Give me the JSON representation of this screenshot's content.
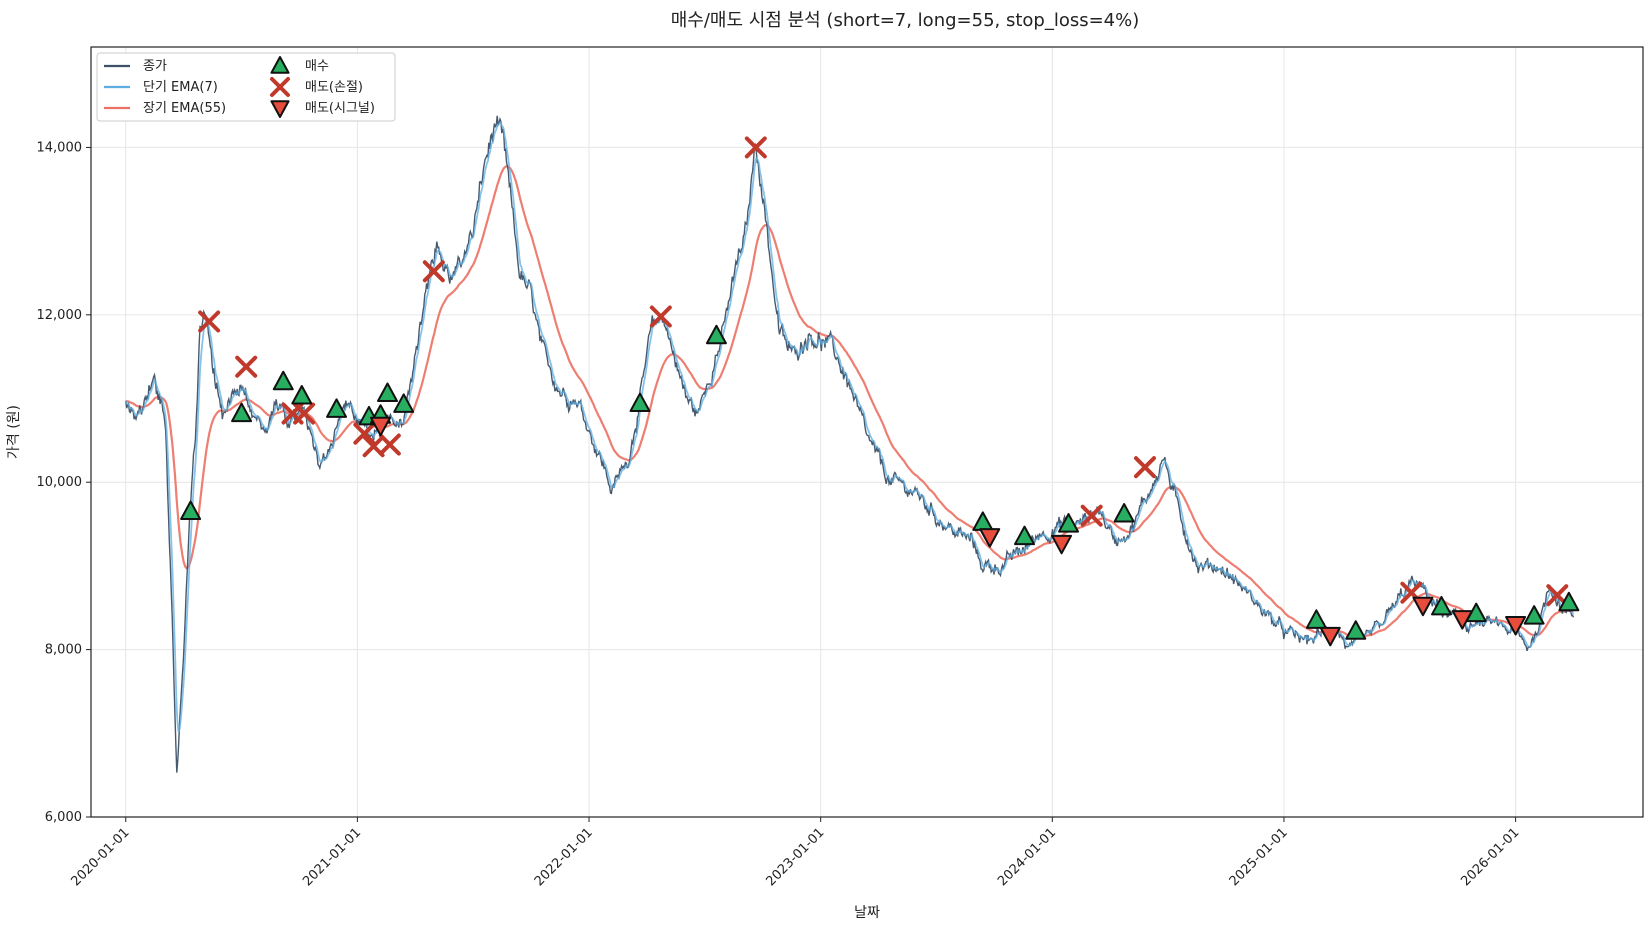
{
  "chart_data": {
    "type": "line",
    "title": "매수/매도 시점 분석 (short=7, long=55, stop_loss=4%)",
    "xlabel": "날짜",
    "ylabel": "가격 (원)",
    "ylim": [
      6000,
      15200
    ],
    "xlim": [
      2019.85,
      2026.55
    ],
    "yticks": [
      6000,
      8000,
      10000,
      12000,
      14000
    ],
    "ytick_labels": [
      "6,000",
      "8,000",
      "10,000",
      "12,000",
      "14,000"
    ],
    "xticks": [
      2020,
      2021,
      2022,
      2023,
      2024,
      2025,
      2026
    ],
    "xtick_labels": [
      "2020-01-01",
      "2021-01-01",
      "2022-01-01",
      "2023-01-01",
      "2024-01-01",
      "2025-01-01",
      "2026-01-01"
    ],
    "grid": true,
    "legend_position": "top-left",
    "colors": {
      "close": "#3d5166",
      "short": "#5dade2",
      "long": "#ec7063",
      "buy": "#27ae60",
      "stop": "#c0392b",
      "signal": "#e74c3c"
    },
    "legend": [
      "종가",
      "단기 EMA(7)",
      "장기 EMA(55)",
      "매수",
      "매도(손절)",
      "매도(시그널)"
    ],
    "price_anchors": {
      "x": [
        2020.0,
        2020.05,
        2020.12,
        2020.17,
        2020.2,
        2020.22,
        2020.25,
        2020.28,
        2020.3,
        2020.32,
        2020.35,
        2020.37,
        2020.42,
        2020.5,
        2020.55,
        2020.6,
        2020.65,
        2020.7,
        2020.77,
        2020.83,
        2020.9,
        2020.95,
        2021.0,
        2021.05,
        2021.12,
        2021.2,
        2021.3,
        2021.35,
        2021.4,
        2021.45,
        2021.5,
        2021.55,
        2021.6,
        2021.63,
        2021.65,
        2021.7,
        2021.75,
        2021.8,
        2021.88,
        2021.95,
        2022.05,
        2022.1,
        2022.17,
        2022.22,
        2022.27,
        2022.32,
        2022.37,
        2022.42,
        2022.47,
        2022.52,
        2022.58,
        2022.63,
        2022.68,
        2022.72,
        2022.77,
        2022.82,
        2022.88,
        2022.95,
        2023.05,
        2023.12,
        2023.2,
        2023.3,
        2023.4,
        2023.5,
        2023.58,
        2023.65,
        2023.7,
        2023.78,
        2023.88,
        2023.95,
        2024.05,
        2024.12,
        2024.2,
        2024.27,
        2024.35,
        2024.42,
        2024.48,
        2024.55,
        2024.63,
        2024.72,
        2024.8,
        2024.9,
        2025.0,
        2025.1,
        2025.17,
        2025.22,
        2025.28,
        2025.35,
        2025.42,
        2025.5,
        2025.55,
        2025.6,
        2025.7,
        2025.8,
        2025.9,
        2026.0,
        2026.05,
        2026.1,
        2026.15,
        2026.2,
        2026.25
      ],
      "y": [
        10900,
        10800,
        11200,
        10700,
        8500,
        6500,
        8000,
        9700,
        10500,
        11800,
        12000,
        11500,
        10800,
        11100,
        10800,
        10600,
        11000,
        10600,
        10900,
        10300,
        10500,
        10900,
        10800,
        10600,
        10800,
        10700,
        12300,
        12800,
        12400,
        12600,
        13000,
        13800,
        14300,
        14000,
        13600,
        12500,
        12200,
        11500,
        11100,
        11000,
        10300,
        9900,
        10300,
        11000,
        11800,
        12000,
        11500,
        11000,
        10800,
        11300,
        11800,
        12500,
        13000,
        14100,
        13000,
        11800,
        11500,
        11800,
        11600,
        11200,
        10500,
        10000,
        9900,
        9600,
        9400,
        9300,
        9000,
        9000,
        9200,
        9400,
        9500,
        9500,
        9700,
        9300,
        9500,
        9900,
        10300,
        9600,
        9000,
        9000,
        8800,
        8500,
        8200,
        8100,
        8200,
        8300,
        8000,
        8100,
        8300,
        8600,
        8800,
        8700,
        8400,
        8300,
        8300,
        8200,
        8000,
        8300,
        8800,
        8500,
        8400
      ]
    },
    "markers": {
      "buy": {
        "x": [
          2020.28,
          2020.5,
          2020.68,
          2020.76,
          2020.91,
          2021.05,
          2021.1,
          2021.13,
          2021.2,
          2022.22,
          2022.55,
          2023.7,
          2023.88,
          2024.07,
          2024.31,
          2025.14,
          2025.31,
          2025.68,
          2025.83,
          2026.08,
          2026.23
        ],
        "y": [
          9650,
          10820,
          11200,
          11030,
          10870,
          10780,
          10800,
          11060,
          10930,
          10940,
          11750,
          9520,
          9350,
          9500,
          9620,
          8350,
          8220,
          8510,
          8430,
          8400,
          8560
        ]
      },
      "stop_loss": {
        "x": [
          2020.36,
          2020.52,
          2020.72,
          2020.77,
          2021.03,
          2021.07,
          2021.14,
          2021.33,
          2022.31,
          2022.72,
          2024.17,
          2024.4,
          2025.55,
          2026.18
        ],
        "y": [
          11920,
          11380,
          10820,
          10820,
          10580,
          10430,
          10450,
          12520,
          11980,
          14000,
          9600,
          10180,
          8680,
          8650
        ]
      },
      "sell_signal": {
        "x": [
          2021.1,
          2023.73,
          2024.04,
          2025.2,
          2025.6,
          2025.77,
          2026.0
        ],
        "y": [
          10680,
          9350,
          9270,
          8170,
          8530,
          8370,
          8300
        ]
      }
    }
  }
}
